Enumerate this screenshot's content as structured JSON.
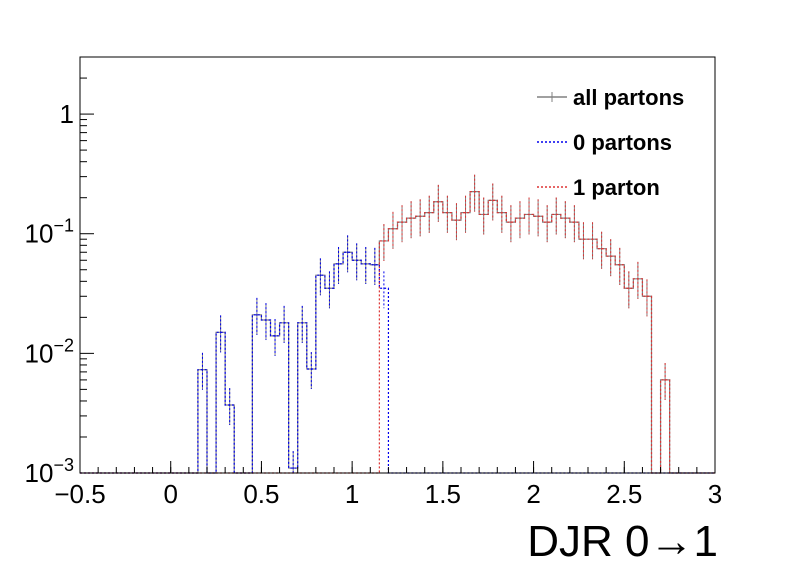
{
  "chart_data": {
    "type": "histogram",
    "xlabel": "DJR 0→1",
    "xlim": [
      -0.5,
      3.0
    ],
    "ylim": [
      0.001,
      3.0
    ],
    "yscale": "log",
    "bin_width": 0.05,
    "x_ticks": [
      "−0.5",
      "0",
      "0.5",
      "1",
      "1.5",
      "2",
      "2.5",
      "3"
    ],
    "x_tick_values": [
      -0.5,
      0,
      0.5,
      1,
      1.5,
      2,
      2.5,
      3
    ],
    "y_ticks": [
      {
        "value": 0.001,
        "base": "10",
        "exp": "−3"
      },
      {
        "value": 0.01,
        "base": "10",
        "exp": "−2"
      },
      {
        "value": 0.1,
        "base": "10",
        "exp": "−1"
      },
      {
        "value": 1,
        "base": "1",
        "exp": ""
      }
    ],
    "legend_position": "top-right",
    "series": [
      {
        "name": "all partons",
        "color": "#808080",
        "style": "solid",
        "bins": [
          [
            0.15,
            0.2,
            0.0073
          ],
          [
            0.25,
            0.3,
            0.015
          ],
          [
            0.3,
            0.35,
            0.0037
          ],
          [
            0.45,
            0.5,
            0.021
          ],
          [
            0.5,
            0.55,
            0.019
          ],
          [
            0.55,
            0.6,
            0.014
          ],
          [
            0.6,
            0.65,
            0.018
          ],
          [
            0.65,
            0.7,
            0.0011
          ],
          [
            0.7,
            0.75,
            0.018
          ],
          [
            0.75,
            0.8,
            0.0074
          ],
          [
            0.8,
            0.85,
            0.045
          ],
          [
            0.85,
            0.9,
            0.035
          ],
          [
            0.9,
            0.95,
            0.056
          ],
          [
            0.95,
            1.0,
            0.07
          ],
          [
            1.0,
            1.05,
            0.06
          ],
          [
            1.05,
            1.1,
            0.056
          ],
          [
            1.1,
            1.15,
            0.055
          ],
          [
            1.15,
            1.2,
            0.087
          ],
          [
            1.2,
            1.25,
            0.11
          ],
          [
            1.25,
            1.3,
            0.125
          ],
          [
            1.3,
            1.35,
            0.135
          ],
          [
            1.35,
            1.4,
            0.14
          ],
          [
            1.4,
            1.45,
            0.15
          ],
          [
            1.45,
            1.5,
            0.185
          ],
          [
            1.5,
            1.55,
            0.15
          ],
          [
            1.55,
            1.6,
            0.13
          ],
          [
            1.6,
            1.65,
            0.15
          ],
          [
            1.65,
            1.7,
            0.225
          ],
          [
            1.7,
            1.75,
            0.145
          ],
          [
            1.75,
            1.8,
            0.19
          ],
          [
            1.8,
            1.85,
            0.15
          ],
          [
            1.85,
            1.9,
            0.125
          ],
          [
            1.9,
            1.95,
            0.135
          ],
          [
            1.95,
            2.0,
            0.145
          ],
          [
            2.0,
            2.05,
            0.14
          ],
          [
            2.05,
            2.1,
            0.125
          ],
          [
            2.1,
            2.15,
            0.145
          ],
          [
            2.15,
            2.2,
            0.135
          ],
          [
            2.2,
            2.25,
            0.125
          ],
          [
            2.25,
            2.3,
            0.09
          ],
          [
            2.3,
            2.35,
            0.09
          ],
          [
            2.35,
            2.4,
            0.075
          ],
          [
            2.4,
            2.45,
            0.065
          ],
          [
            2.45,
            2.5,
            0.055
          ],
          [
            2.5,
            2.55,
            0.035
          ],
          [
            2.55,
            2.6,
            0.042
          ],
          [
            2.6,
            2.65,
            0.03
          ],
          [
            2.65,
            2.7,
            0.0001
          ],
          [
            2.7,
            2.75,
            0.006
          ]
        ]
      },
      {
        "name": "0 partons",
        "color": "#0000ee",
        "style": "dotted",
        "bins": [
          [
            0.15,
            0.2,
            0.0073
          ],
          [
            0.25,
            0.3,
            0.015
          ],
          [
            0.3,
            0.35,
            0.0037
          ],
          [
            0.45,
            0.5,
            0.021
          ],
          [
            0.5,
            0.55,
            0.019
          ],
          [
            0.55,
            0.6,
            0.014
          ],
          [
            0.6,
            0.65,
            0.018
          ],
          [
            0.65,
            0.7,
            0.0011
          ],
          [
            0.7,
            0.75,
            0.018
          ],
          [
            0.75,
            0.8,
            0.0074
          ],
          [
            0.8,
            0.85,
            0.045
          ],
          [
            0.85,
            0.9,
            0.035
          ],
          [
            0.9,
            0.95,
            0.056
          ],
          [
            0.95,
            1.0,
            0.07
          ],
          [
            1.0,
            1.05,
            0.06
          ],
          [
            1.05,
            1.1,
            0.056
          ],
          [
            1.1,
            1.15,
            0.055
          ],
          [
            1.15,
            1.2,
            0.035
          ]
        ]
      },
      {
        "name": "1 parton",
        "color": "#dd3333",
        "style": "dotted",
        "bins": [
          [
            1.15,
            1.2,
            0.087
          ],
          [
            1.2,
            1.25,
            0.11
          ],
          [
            1.25,
            1.3,
            0.125
          ],
          [
            1.3,
            1.35,
            0.135
          ],
          [
            1.35,
            1.4,
            0.14
          ],
          [
            1.4,
            1.45,
            0.15
          ],
          [
            1.45,
            1.5,
            0.185
          ],
          [
            1.5,
            1.55,
            0.15
          ],
          [
            1.55,
            1.6,
            0.13
          ],
          [
            1.6,
            1.65,
            0.15
          ],
          [
            1.65,
            1.7,
            0.225
          ],
          [
            1.7,
            1.75,
            0.145
          ],
          [
            1.75,
            1.8,
            0.19
          ],
          [
            1.8,
            1.85,
            0.15
          ],
          [
            1.85,
            1.9,
            0.125
          ],
          [
            1.9,
            1.95,
            0.135
          ],
          [
            1.95,
            2.0,
            0.145
          ],
          [
            2.0,
            2.05,
            0.14
          ],
          [
            2.05,
            2.1,
            0.125
          ],
          [
            2.1,
            2.15,
            0.145
          ],
          [
            2.15,
            2.2,
            0.135
          ],
          [
            2.2,
            2.25,
            0.125
          ],
          [
            2.25,
            2.3,
            0.09
          ],
          [
            2.3,
            2.35,
            0.09
          ],
          [
            2.35,
            2.4,
            0.075
          ],
          [
            2.4,
            2.45,
            0.065
          ],
          [
            2.45,
            2.5,
            0.055
          ],
          [
            2.5,
            2.55,
            0.035
          ],
          [
            2.55,
            2.6,
            0.042
          ],
          [
            2.6,
            2.65,
            0.03
          ],
          [
            2.7,
            2.75,
            0.006
          ]
        ]
      }
    ]
  }
}
